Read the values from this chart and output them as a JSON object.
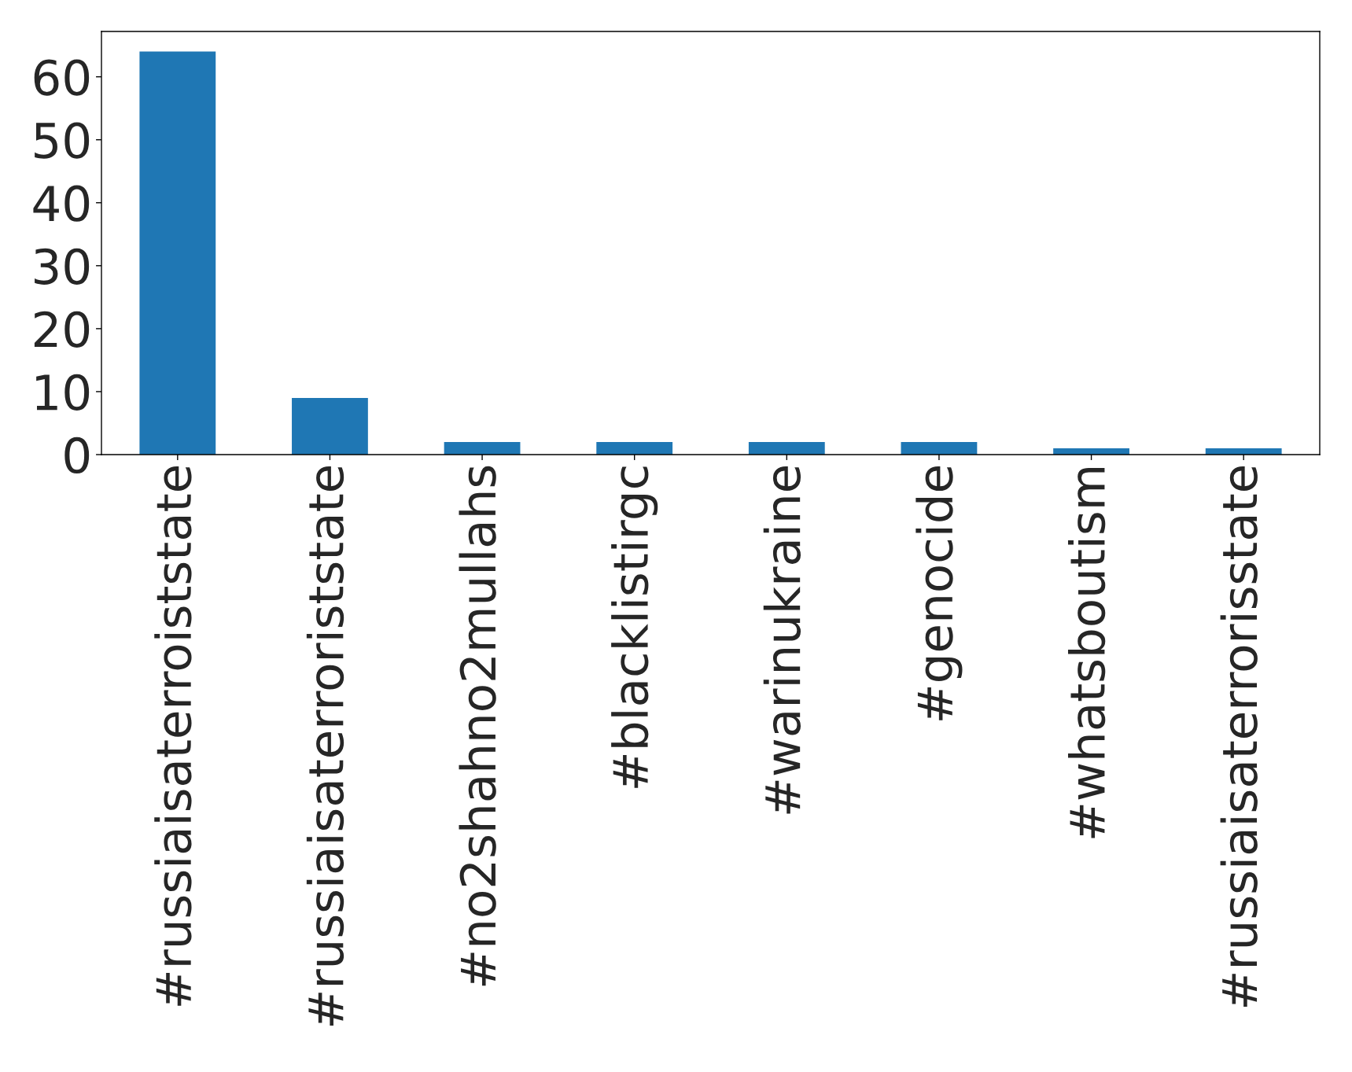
{
  "chart_data": {
    "type": "bar",
    "categories": [
      "#russiaisaterroiststate",
      "#russiaisaterroriststate",
      "#no2shahno2mullahs",
      "#blacklistirgc",
      "#warinukraine",
      "#genocide",
      "#whatsboutism",
      "#russiaisaterrorisstate"
    ],
    "values": [
      64,
      9,
      2,
      2,
      2,
      2,
      1,
      1
    ],
    "color": "#1f77b4",
    "ylim": [
      0,
      67.2
    ],
    "yticks": [
      0,
      10,
      20,
      30,
      40,
      50,
      60
    ],
    "grid": false
  }
}
